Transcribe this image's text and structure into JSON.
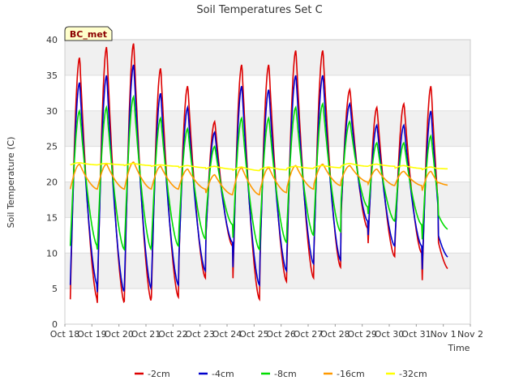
{
  "chart_data": {
    "type": "line",
    "title": "Soil Temperatures Set C",
    "xlabel": "Time",
    "ylabel": "Soil Temperature (C)",
    "badge": "BC_met",
    "xlim": [
      0,
      15
    ],
    "ylim": [
      0,
      40
    ],
    "yticks": [
      0,
      5,
      10,
      15,
      20,
      25,
      30,
      35,
      40
    ],
    "xticks": [
      "Oct 18",
      "Oct 19",
      "Oct 20",
      "Oct 21",
      "Oct 22",
      "Oct 23",
      "Oct 24",
      "Oct 25",
      "Oct 26",
      "Oct 27",
      "Oct 28",
      "Oct 29",
      "Oct 30",
      "Oct 31",
      "Nov 1",
      "Nov 2"
    ],
    "grid": true,
    "legend_position": "bottom",
    "series": [
      {
        "name": "-2cm",
        "color": "#dd0000",
        "daily_max": [
          37.5,
          39.0,
          39.5,
          36.0,
          33.5,
          28.5,
          36.5,
          36.5,
          38.5,
          38.5,
          33.0,
          30.5,
          31.0,
          33.5
        ],
        "daily_min": [
          3.5,
          3.0,
          3.2,
          3.8,
          6.5,
          11.0,
          3.5,
          6.0,
          6.5,
          8.0,
          13.5,
          9.5,
          10.0,
          3.5
        ],
        "end_value": 9.5
      },
      {
        "name": "-4cm",
        "color": "#0000cc",
        "daily_max": [
          34.0,
          35.0,
          36.5,
          32.5,
          30.5,
          27.0,
          33.5,
          33.0,
          35.0,
          35.0,
          31.0,
          28.0,
          28.0,
          30.0
        ],
        "daily_min": [
          5.5,
          4.5,
          5.0,
          5.5,
          7.5,
          11.5,
          5.5,
          7.5,
          8.5,
          9.0,
          14.5,
          11.0,
          11.0,
          5.5
        ],
        "end_value": 11.0
      },
      {
        "name": "-8cm",
        "color": "#00dd00",
        "daily_max": [
          30.0,
          30.5,
          32.0,
          29.0,
          27.5,
          25.0,
          29.0,
          29.0,
          30.5,
          31.0,
          28.5,
          25.5,
          25.5,
          26.5
        ],
        "daily_min": [
          11.0,
          10.5,
          10.5,
          11.0,
          12.0,
          14.0,
          10.5,
          11.5,
          12.5,
          13.0,
          16.5,
          14.5,
          14.0,
          10.5
        ],
        "end_value": 14.5
      },
      {
        "name": "-16cm",
        "color": "#ff9900",
        "daily_max": [
          22.5,
          22.5,
          22.8,
          22.2,
          21.8,
          21.0,
          22.0,
          22.0,
          22.3,
          22.5,
          22.3,
          21.8,
          21.5,
          21.5
        ],
        "daily_min": [
          19.0,
          19.0,
          19.0,
          19.0,
          19.0,
          18.2,
          18.2,
          18.5,
          19.0,
          19.5,
          20.0,
          19.5,
          19.5,
          18.5
        ],
        "end_value": 20.0
      },
      {
        "name": "-32cm",
        "color": "#ffff00",
        "daily_max": [
          22.7,
          22.6,
          22.6,
          22.4,
          22.3,
          22.2,
          22.1,
          22.1,
          22.2,
          22.3,
          22.6,
          22.5,
          22.3,
          22.1
        ],
        "daily_min": [
          22.4,
          22.4,
          22.3,
          22.2,
          22.0,
          21.8,
          21.6,
          21.7,
          21.9,
          22.0,
          22.2,
          22.2,
          21.9,
          21.7
        ],
        "end_value": 21.9
      }
    ]
  }
}
